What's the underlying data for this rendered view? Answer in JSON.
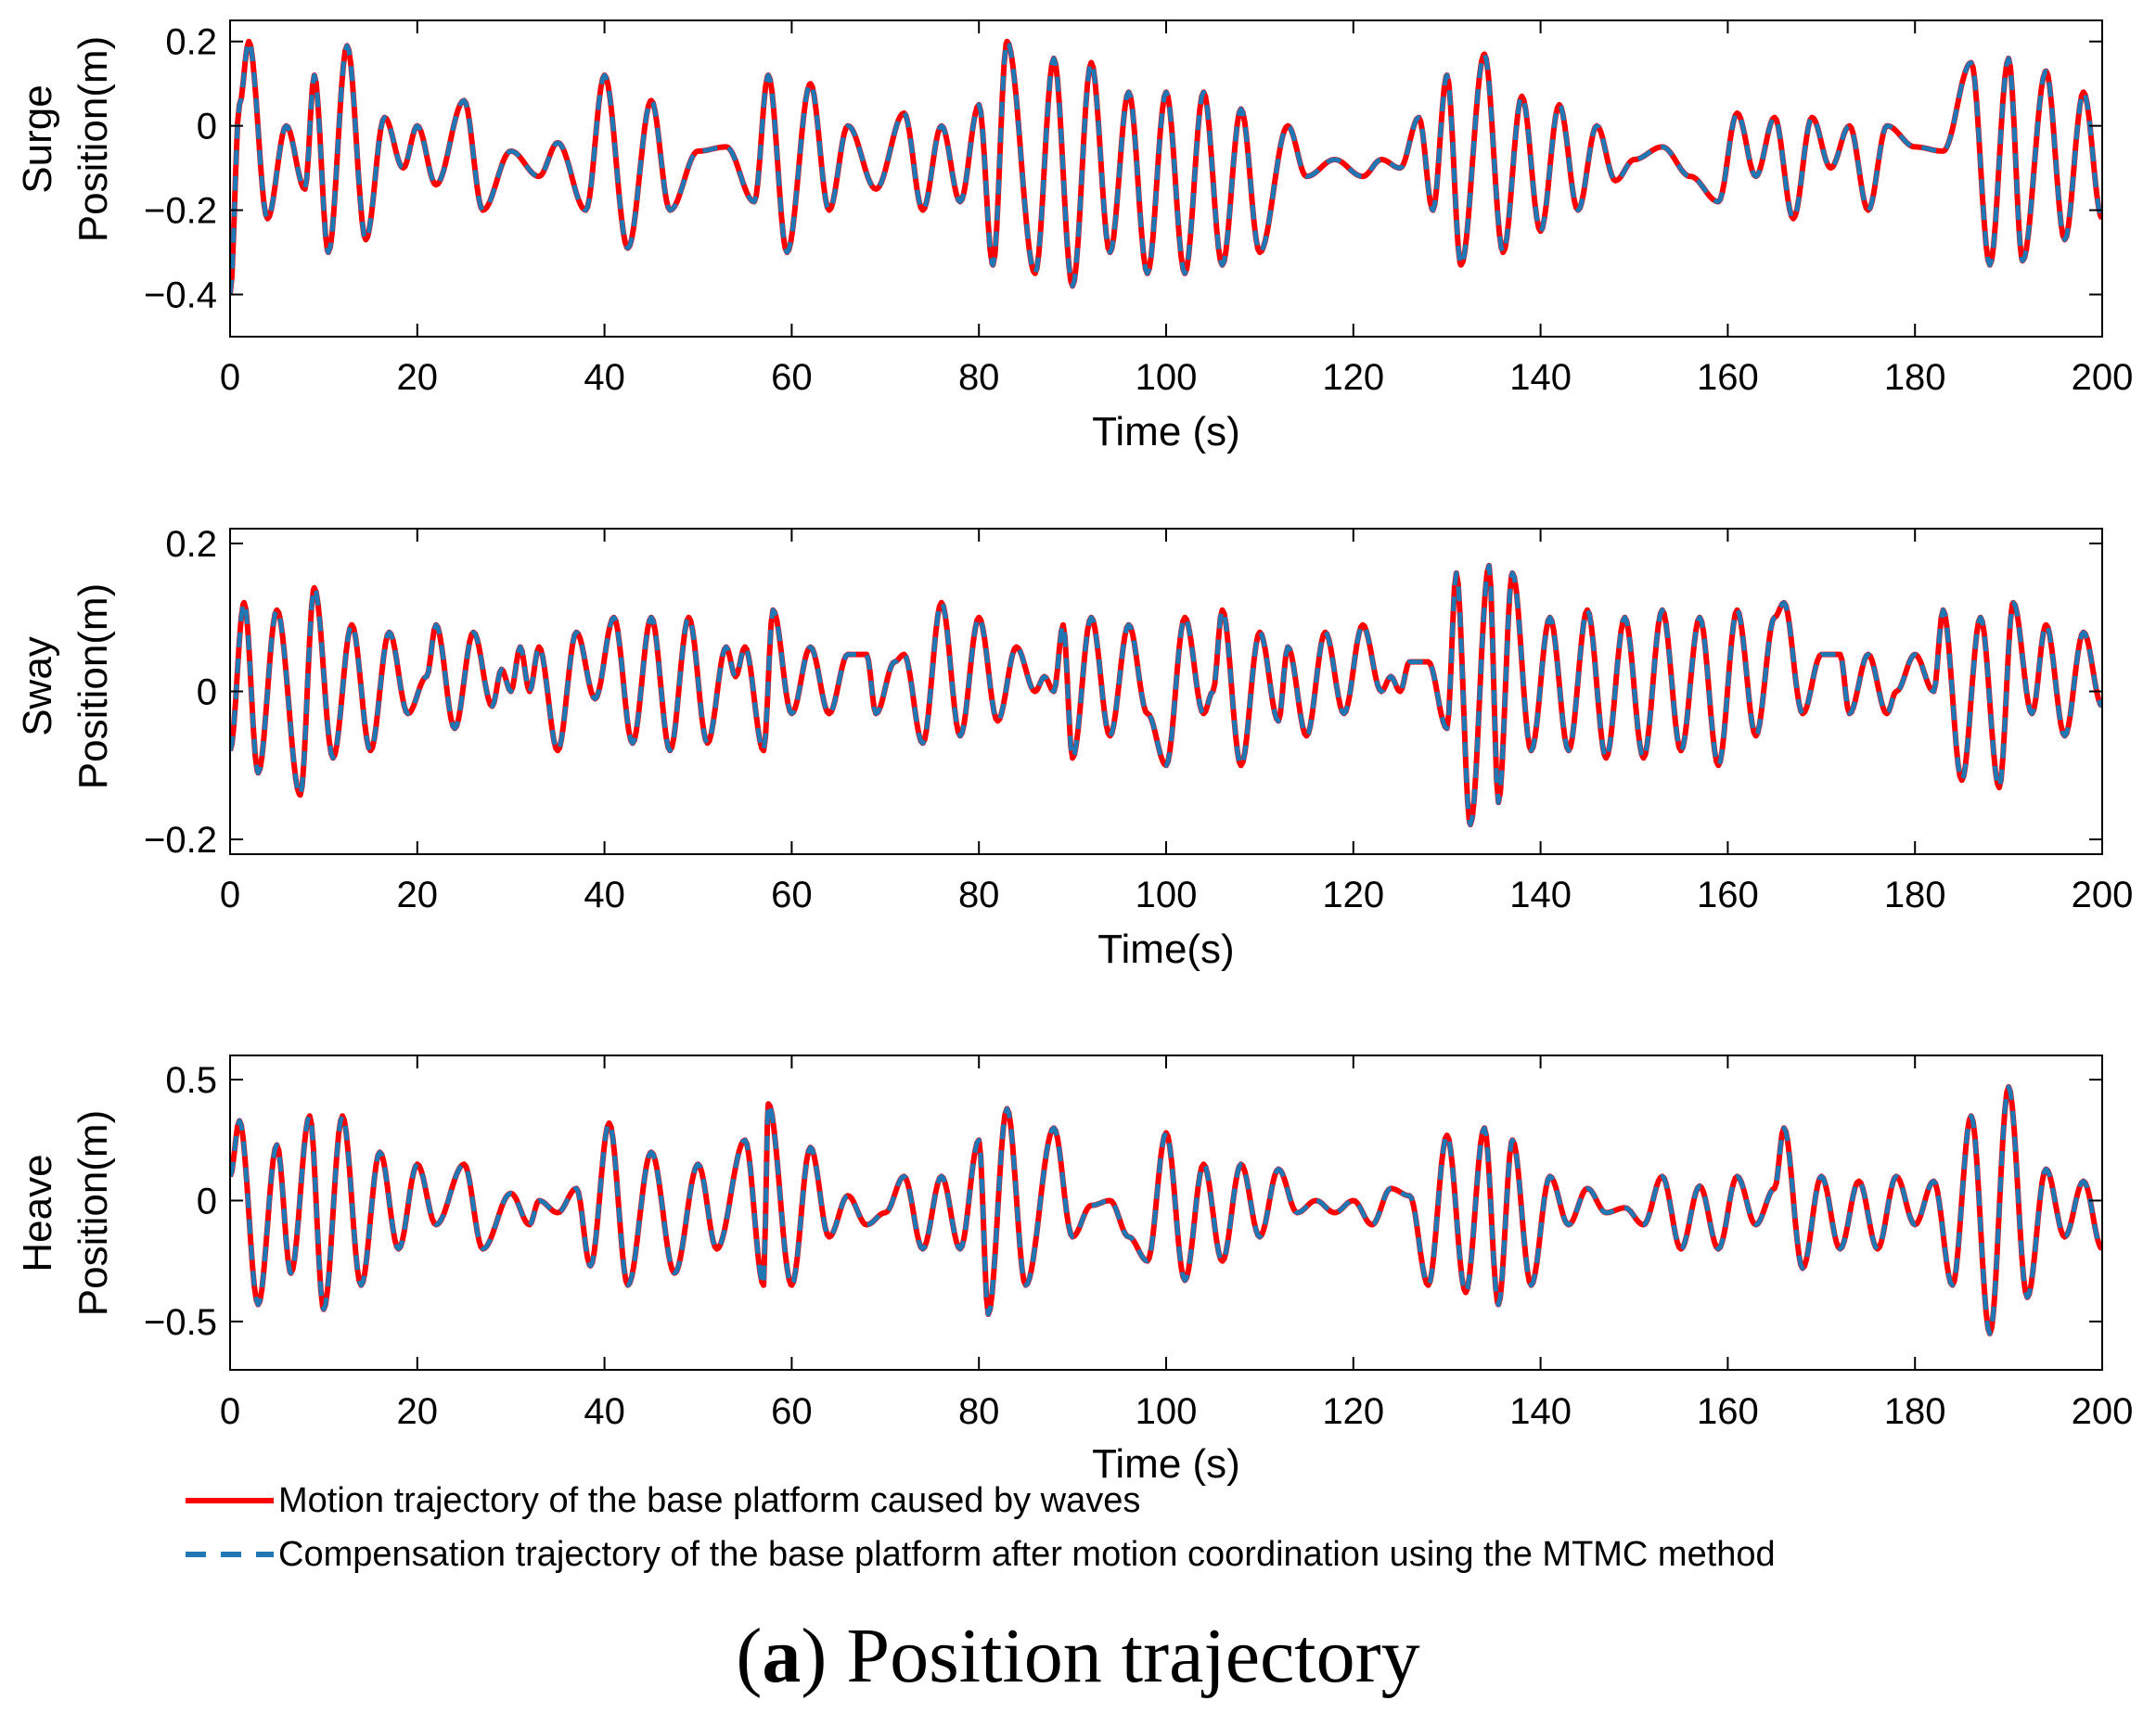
{
  "chart_data": [
    {
      "type": "line",
      "panel": "surge",
      "ylabel_line1": "Surge",
      "ylabel_line2": "Position(m)",
      "xlabel": "Time (s)",
      "xlim": [
        0,
        200
      ],
      "ylim": [
        -0.5,
        0.25
      ],
      "xticks": [
        0,
        20,
        40,
        60,
        80,
        100,
        120,
        140,
        160,
        180,
        200
      ],
      "xtick_labels": [
        "0",
        "20",
        "40",
        "60",
        "80",
        "100",
        "120",
        "140",
        "160",
        "180",
        "200"
      ],
      "yticks": [
        0.2,
        0,
        -0.2,
        -0.4
      ],
      "ytick_labels": [
        "0.2",
        "0",
        "−0.2",
        "−0.4"
      ],
      "envelope_points": [
        [
          0,
          -0.4
        ],
        [
          1,
          0.05
        ],
        [
          2,
          0.2
        ],
        [
          4,
          -0.22
        ],
        [
          6,
          0
        ],
        [
          8,
          -0.15
        ],
        [
          9,
          0.12
        ],
        [
          10.5,
          -0.3
        ],
        [
          12.5,
          0.19
        ],
        [
          14.5,
          -0.27
        ],
        [
          16.5,
          0.02
        ],
        [
          18.5,
          -0.1
        ],
        [
          20,
          0.0
        ],
        [
          22,
          -0.14
        ],
        [
          25,
          0.06
        ],
        [
          27,
          -0.2
        ],
        [
          30,
          -0.06
        ],
        [
          33,
          -0.12
        ],
        [
          35,
          -0.04
        ],
        [
          38,
          -0.2
        ],
        [
          40,
          0.12
        ],
        [
          42.5,
          -0.29
        ],
        [
          45,
          0.06
        ],
        [
          47,
          -0.2
        ],
        [
          50,
          -0.06
        ],
        [
          53,
          -0.05
        ],
        [
          56,
          -0.18
        ],
        [
          57.5,
          0.12
        ],
        [
          59.5,
          -0.3
        ],
        [
          62,
          0.1
        ],
        [
          64,
          -0.2
        ],
        [
          66,
          0.0
        ],
        [
          69,
          -0.15
        ],
        [
          72,
          0.03
        ],
        [
          74,
          -0.2
        ],
        [
          76,
          0.0
        ],
        [
          78,
          -0.18
        ],
        [
          80,
          0.05
        ],
        [
          81.5,
          -0.33
        ],
        [
          83,
          0.2
        ],
        [
          86,
          -0.35
        ],
        [
          88,
          0.16
        ],
        [
          90,
          -0.38
        ],
        [
          92,
          0.15
        ],
        [
          94,
          -0.3
        ],
        [
          96,
          0.08
        ],
        [
          98,
          -0.35
        ],
        [
          100,
          0.08
        ],
        [
          102,
          -0.35
        ],
        [
          104,
          0.08
        ],
        [
          106,
          -0.33
        ],
        [
          108,
          0.04
        ],
        [
          110,
          -0.3
        ],
        [
          113,
          0.0
        ],
        [
          115,
          -0.12
        ],
        [
          118,
          -0.08
        ],
        [
          121,
          -0.12
        ],
        [
          123,
          -0.08
        ],
        [
          125,
          -0.1
        ],
        [
          127,
          0.02
        ],
        [
          128.5,
          -0.2
        ],
        [
          130,
          0.12
        ],
        [
          131.5,
          -0.33
        ],
        [
          134,
          0.17
        ],
        [
          136,
          -0.3
        ],
        [
          138,
          0.07
        ],
        [
          140,
          -0.25
        ],
        [
          142,
          0.05
        ],
        [
          144,
          -0.2
        ],
        [
          146,
          0.0
        ],
        [
          148,
          -0.13
        ],
        [
          150,
          -0.08
        ],
        [
          153,
          -0.05
        ],
        [
          156,
          -0.12
        ],
        [
          159,
          -0.18
        ],
        [
          161,
          0.03
        ],
        [
          163,
          -0.12
        ],
        [
          165,
          0.02
        ],
        [
          167,
          -0.22
        ],
        [
          169,
          0.02
        ],
        [
          171,
          -0.1
        ],
        [
          173,
          0.0
        ],
        [
          175,
          -0.2
        ],
        [
          177,
          0.0
        ],
        [
          180,
          -0.05
        ],
        [
          183,
          -0.06
        ],
        [
          186,
          0.15
        ],
        [
          188,
          -0.33
        ],
        [
          190,
          0.16
        ],
        [
          191.5,
          -0.32
        ],
        [
          194,
          0.13
        ],
        [
          196,
          -0.27
        ],
        [
          198,
          0.08
        ],
        [
          200,
          -0.22
        ]
      ]
    },
    {
      "type": "line",
      "panel": "sway",
      "ylabel_line1": "Sway",
      "ylabel_line2": "Position(m)",
      "xlabel": "Time(s)",
      "xlim": [
        0,
        200
      ],
      "ylim": [
        -0.22,
        0.22
      ],
      "xticks": [
        0,
        20,
        40,
        60,
        80,
        100,
        120,
        140,
        160,
        180,
        200
      ],
      "xtick_labels": [
        "0",
        "20",
        "40",
        "60",
        "80",
        "100",
        "120",
        "140",
        "160",
        "180",
        "200"
      ],
      "yticks": [
        0.2,
        0,
        -0.2
      ],
      "ytick_labels": [
        "0.2",
        "0",
        "−0.2"
      ],
      "envelope_points": [
        [
          0,
          -0.08
        ],
        [
          1.5,
          0.12
        ],
        [
          3,
          -0.11
        ],
        [
          5,
          0.11
        ],
        [
          7.5,
          -0.14
        ],
        [
          9,
          0.14
        ],
        [
          11,
          -0.09
        ],
        [
          13,
          0.09
        ],
        [
          15,
          -0.08
        ],
        [
          17,
          0.08
        ],
        [
          19,
          -0.03
        ],
        [
          21,
          0.02
        ],
        [
          22,
          0.09
        ],
        [
          24,
          -0.05
        ],
        [
          26,
          0.08
        ],
        [
          28,
          -0.02
        ],
        [
          29,
          0.03
        ],
        [
          30,
          0.0
        ],
        [
          31,
          0.06
        ],
        [
          32,
          0.0
        ],
        [
          33,
          0.06
        ],
        [
          35,
          -0.08
        ],
        [
          37,
          0.08
        ],
        [
          39,
          -0.01
        ],
        [
          41,
          0.1
        ],
        [
          43,
          -0.07
        ],
        [
          45,
          0.1
        ],
        [
          47,
          -0.08
        ],
        [
          49,
          0.1
        ],
        [
          51,
          -0.07
        ],
        [
          53,
          0.06
        ],
        [
          54,
          0.02
        ],
        [
          55,
          0.06
        ],
        [
          57,
          -0.08
        ],
        [
          58,
          0.11
        ],
        [
          60,
          -0.03
        ],
        [
          62,
          0.06
        ],
        [
          64,
          -0.03
        ],
        [
          66,
          0.05
        ],
        [
          68,
          0.05
        ],
        [
          69,
          -0.03
        ],
        [
          71,
          0.04
        ],
        [
          72,
          0.05
        ],
        [
          74,
          -0.07
        ],
        [
          76,
          0.12
        ],
        [
          78,
          -0.06
        ],
        [
          80,
          0.1
        ],
        [
          82,
          -0.04
        ],
        [
          84,
          0.06
        ],
        [
          86,
          0.0
        ],
        [
          87,
          0.02
        ],
        [
          88,
          0.0
        ],
        [
          89,
          0.09
        ],
        [
          90,
          -0.09
        ],
        [
          92,
          0.1
        ],
        [
          94,
          -0.06
        ],
        [
          96,
          0.09
        ],
        [
          98,
          -0.03
        ],
        [
          100,
          -0.1
        ],
        [
          102,
          0.1
        ],
        [
          104,
          -0.03
        ],
        [
          105,
          0.0
        ],
        [
          106,
          0.11
        ],
        [
          108,
          -0.1
        ],
        [
          110,
          0.08
        ],
        [
          112,
          -0.04
        ],
        [
          113,
          0.06
        ],
        [
          115,
          -0.06
        ],
        [
          117,
          0.08
        ],
        [
          119,
          -0.03
        ],
        [
          121,
          0.09
        ],
        [
          123,
          0.0
        ],
        [
          124,
          0.02
        ],
        [
          125,
          0.0
        ],
        [
          126,
          0.04
        ],
        [
          128,
          0.04
        ],
        [
          130,
          -0.05
        ],
        [
          131,
          0.16
        ],
        [
          132.5,
          -0.18
        ],
        [
          134.5,
          0.17
        ],
        [
          135.5,
          -0.15
        ],
        [
          137,
          0.16
        ],
        [
          139,
          -0.08
        ],
        [
          141,
          0.1
        ],
        [
          143,
          -0.08
        ],
        [
          145,
          0.11
        ],
        [
          147,
          -0.09
        ],
        [
          149,
          0.1
        ],
        [
          151,
          -0.09
        ],
        [
          153,
          0.11
        ],
        [
          155,
          -0.08
        ],
        [
          157,
          0.1
        ],
        [
          159,
          -0.1
        ],
        [
          161,
          0.11
        ],
        [
          163,
          -0.06
        ],
        [
          165,
          0.1
        ],
        [
          166,
          0.12
        ],
        [
          168,
          -0.03
        ],
        [
          170,
          0.05
        ],
        [
          172,
          0.05
        ],
        [
          173,
          -0.03
        ],
        [
          175,
          0.05
        ],
        [
          177,
          -0.03
        ],
        [
          178,
          0.0
        ],
        [
          180,
          0.05
        ],
        [
          182,
          0.0
        ],
        [
          183,
          0.11
        ],
        [
          185,
          -0.12
        ],
        [
          187,
          0.1
        ],
        [
          189,
          -0.13
        ],
        [
          190.5,
          0.12
        ],
        [
          192.5,
          -0.03
        ],
        [
          194,
          0.09
        ],
        [
          196,
          -0.06
        ],
        [
          198,
          0.08
        ],
        [
          200,
          -0.02
        ]
      ]
    },
    {
      "type": "line",
      "panel": "heave",
      "ylabel_line1": "Heave",
      "ylabel_line2": "Position(m)",
      "xlabel": "Time (s)",
      "xlim": [
        0,
        200
      ],
      "ylim": [
        -0.7,
        0.6
      ],
      "xticks": [
        0,
        20,
        40,
        60,
        80,
        100,
        120,
        140,
        160,
        180,
        200
      ],
      "xtick_labels": [
        "0",
        "20",
        "40",
        "60",
        "80",
        "100",
        "120",
        "140",
        "160",
        "180",
        "200"
      ],
      "yticks": [
        0.5,
        0,
        -0.5
      ],
      "ytick_labels": [
        "0.5",
        "0",
        "−0.5"
      ],
      "envelope_points": [
        [
          0,
          0.1
        ],
        [
          1,
          0.33
        ],
        [
          3,
          -0.43
        ],
        [
          5,
          0.23
        ],
        [
          6.5,
          -0.3
        ],
        [
          8.5,
          0.35
        ],
        [
          10,
          -0.45
        ],
        [
          12,
          0.35
        ],
        [
          14,
          -0.35
        ],
        [
          16,
          0.2
        ],
        [
          18,
          -0.2
        ],
        [
          20,
          0.15
        ],
        [
          22,
          -0.1
        ],
        [
          25,
          0.15
        ],
        [
          27,
          -0.2
        ],
        [
          30,
          0.03
        ],
        [
          32,
          -0.1
        ],
        [
          33,
          0.0
        ],
        [
          35,
          -0.05
        ],
        [
          37,
          0.05
        ],
        [
          38.5,
          -0.27
        ],
        [
          40.5,
          0.32
        ],
        [
          42.5,
          -0.35
        ],
        [
          45,
          0.2
        ],
        [
          47.5,
          -0.3
        ],
        [
          50,
          0.15
        ],
        [
          52,
          -0.2
        ],
        [
          55,
          0.25
        ],
        [
          57,
          -0.35
        ],
        [
          57.5,
          0.4
        ],
        [
          60,
          -0.35
        ],
        [
          62,
          0.22
        ],
        [
          64,
          -0.15
        ],
        [
          66,
          0.02
        ],
        [
          68,
          -0.1
        ],
        [
          70,
          -0.05
        ],
        [
          72,
          0.1
        ],
        [
          74,
          -0.2
        ],
        [
          76,
          0.1
        ],
        [
          78,
          -0.2
        ],
        [
          80,
          0.25
        ],
        [
          81,
          -0.47
        ],
        [
          83,
          0.38
        ],
        [
          85,
          -0.35
        ],
        [
          88,
          0.3
        ],
        [
          90,
          -0.15
        ],
        [
          92,
          -0.02
        ],
        [
          94,
          0.0
        ],
        [
          96,
          -0.15
        ],
        [
          98,
          -0.25
        ],
        [
          100,
          0.28
        ],
        [
          102,
          -0.33
        ],
        [
          104,
          0.15
        ],
        [
          106,
          -0.25
        ],
        [
          108,
          0.15
        ],
        [
          110,
          -0.15
        ],
        [
          112,
          0.13
        ],
        [
          114,
          -0.05
        ],
        [
          116,
          0.0
        ],
        [
          118,
          -0.05
        ],
        [
          120,
          0.0
        ],
        [
          122,
          -0.1
        ],
        [
          124,
          0.05
        ],
        [
          126,
          0.02
        ],
        [
          128,
          -0.35
        ],
        [
          130,
          0.27
        ],
        [
          132,
          -0.38
        ],
        [
          134,
          0.3
        ],
        [
          135.5,
          -0.43
        ],
        [
          137,
          0.25
        ],
        [
          139,
          -0.35
        ],
        [
          141,
          0.1
        ],
        [
          143,
          -0.1
        ],
        [
          145,
          0.05
        ],
        [
          147,
          -0.05
        ],
        [
          149,
          -0.03
        ],
        [
          151,
          -0.1
        ],
        [
          153,
          0.1
        ],
        [
          155,
          -0.2
        ],
        [
          157,
          0.06
        ],
        [
          159,
          -0.2
        ],
        [
          161,
          0.1
        ],
        [
          163,
          -0.1
        ],
        [
          165,
          0.05
        ],
        [
          166,
          0.3
        ],
        [
          168,
          -0.28
        ],
        [
          170,
          0.1
        ],
        [
          172,
          -0.2
        ],
        [
          174,
          0.08
        ],
        [
          176,
          -0.2
        ],
        [
          178,
          0.1
        ],
        [
          180,
          -0.1
        ],
        [
          182,
          0.08
        ],
        [
          184,
          -0.35
        ],
        [
          186,
          0.35
        ],
        [
          188,
          -0.55
        ],
        [
          190,
          0.47
        ],
        [
          192,
          -0.4
        ],
        [
          194,
          0.13
        ],
        [
          196,
          -0.15
        ],
        [
          198,
          0.08
        ],
        [
          200,
          -0.2
        ]
      ]
    }
  ],
  "legend": {
    "items": [
      {
        "label": "Motion trajectory of the base platform caused by waves",
        "color": "#ff0000",
        "style": "solid"
      },
      {
        "label": "Compensation trajectory of the base platform after motion coordination using the MTMC method",
        "color": "#1f77b4",
        "style": "dashed"
      }
    ]
  },
  "caption": {
    "letter": "a",
    "text": "Position trajectory"
  },
  "colors": {
    "motion": "#ff0000",
    "compensation": "#1f77b4"
  }
}
